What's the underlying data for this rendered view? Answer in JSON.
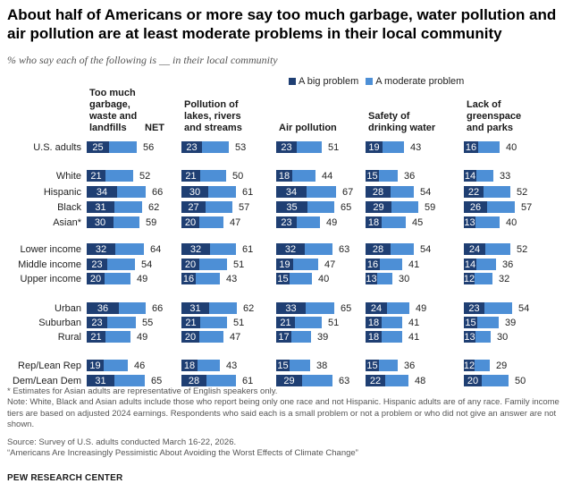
{
  "title": "About half of Americans or more say too much garbage, water pollution and air pollution are at least moderate problems in their local community",
  "subtitle": "% who say each of the following is __ in their local community",
  "colors": {
    "big": "#1f3f73",
    "moderate": "#4d8fd6"
  },
  "chart_data": {
    "type": "bar",
    "stacked": true,
    "legend": [
      "A big problem",
      "A moderate problem"
    ],
    "net_label": "NET",
    "panels": [
      {
        "name": "Too much garbage, waste and landfills",
        "lines": [
          "Too much",
          "garbage,",
          "waste and",
          "landfills"
        ]
      },
      {
        "name": "Pollution of lakes, rivers and streams",
        "lines": [
          "Pollution of",
          "lakes, rivers",
          "and streams"
        ]
      },
      {
        "name": "Air pollution",
        "lines": [
          "Air pollution"
        ]
      },
      {
        "name": "Safety of drinking water",
        "lines": [
          "Safety of",
          "drinking water"
        ]
      },
      {
        "name": "Lack of greenspace and parks",
        "lines": [
          "Lack of",
          "greenspace",
          "and parks"
        ]
      }
    ],
    "categories": [
      "U.S. adults",
      "White",
      "Hispanic",
      "Black",
      "Asian*",
      "Lower income",
      "Middle income",
      "Upper income",
      "Urban",
      "Suburban",
      "Rural",
      "Rep/Lean Rep",
      "Dem/Lean Dem"
    ],
    "big": [
      [
        25,
        21,
        34,
        31,
        30,
        32,
        23,
        20,
        36,
        23,
        21,
        19,
        31
      ],
      [
        23,
        21,
        30,
        27,
        20,
        32,
        20,
        16,
        31,
        21,
        20,
        18,
        28
      ],
      [
        23,
        18,
        34,
        35,
        23,
        32,
        19,
        15,
        33,
        21,
        17,
        15,
        29
      ],
      [
        19,
        15,
        28,
        29,
        18,
        28,
        16,
        13,
        24,
        18,
        18,
        15,
        22
      ],
      [
        16,
        14,
        22,
        26,
        13,
        24,
        14,
        12,
        23,
        15,
        13,
        12,
        20
      ]
    ],
    "net": [
      [
        56,
        52,
        66,
        62,
        59,
        64,
        54,
        49,
        66,
        55,
        49,
        46,
        65
      ],
      [
        53,
        50,
        61,
        57,
        47,
        61,
        51,
        43,
        62,
        51,
        47,
        43,
        61
      ],
      [
        51,
        44,
        67,
        65,
        49,
        63,
        47,
        40,
        65,
        51,
        39,
        38,
        63
      ],
      [
        43,
        36,
        54,
        59,
        45,
        54,
        41,
        30,
        49,
        41,
        41,
        36,
        48
      ],
      [
        40,
        33,
        52,
        57,
        40,
        52,
        36,
        32,
        54,
        39,
        30,
        29,
        50
      ]
    ],
    "xlim": [
      0,
      100
    ]
  },
  "footnotes": [
    "* Estimates for Asian adults are representative of English speakers only.",
    "Note: White, Black and Asian adults include those who report being only one race and not Hispanic. Hispanic adults are of any race. Family income tiers are based on adjusted 2024 earnings. Respondents who said each is a small problem or not a problem or who did not give an answer are not shown.",
    "Source: Survey of U.S. adults conducted March 16-22, 2026.",
    "“Americans Are Increasingly Pessimistic About Avoiding the Worst Effects of Climate Change”"
  ],
  "brand": "PEW RESEARCH CENTER"
}
